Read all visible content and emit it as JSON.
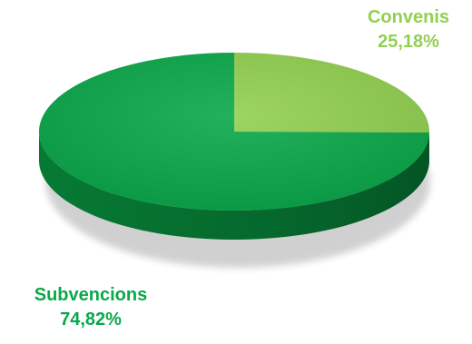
{
  "chart_data": {
    "type": "pie",
    "categories": [
      "Subvencions",
      "Convenis"
    ],
    "values": [
      74.82,
      25.18
    ],
    "value_labels": [
      "74,82%",
      "25,18%"
    ],
    "colors": [
      "#0aa84a",
      "#92d050"
    ],
    "side_colors": [
      "#067a34",
      "#6f9e3a"
    ],
    "legend": "none"
  }
}
